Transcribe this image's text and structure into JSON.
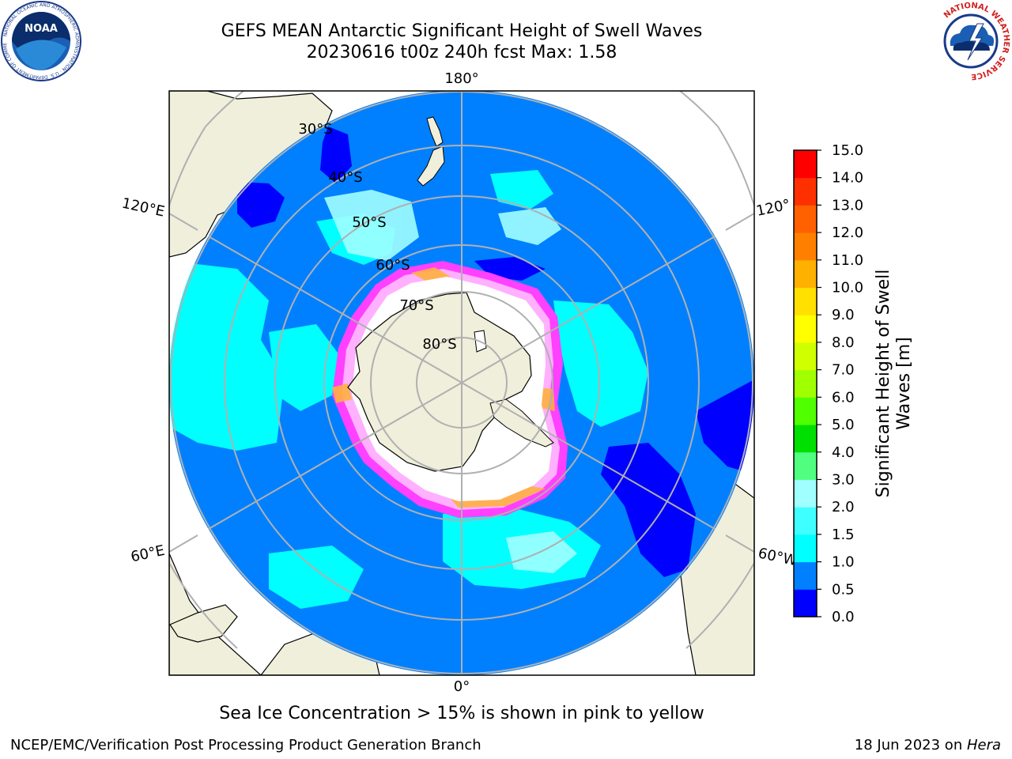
{
  "header": {
    "title_line1": "GEFS MEAN Antarctic Significant Height of Swell Waves",
    "title_line2": "20230616 t00z 240h fcst   Max: 1.58"
  },
  "logos": {
    "left": {
      "name": "noaa-logo",
      "text": "NOAA",
      "ring_text": "NATIONAL OCEANIC AND ATMOSPHERIC ADMINISTRATION · U.S. DEPARTMENT OF COMMERCE"
    },
    "right": {
      "name": "nws-logo",
      "ring_text": "NATIONAL WEATHER SERVICE"
    }
  },
  "map": {
    "projection": "south-polar-stereographic",
    "longitude_labels": {
      "top": "180°",
      "bottom": "0°",
      "upper_left": "120°E",
      "lower_left": "60°E",
      "upper_right": "120°",
      "lower_right": "60°W"
    },
    "latitude_labels": [
      "30°S",
      "40°S",
      "50°S",
      "60°S",
      "70°S",
      "80°S"
    ]
  },
  "colorbar": {
    "label_line1": "Significant Height of Swell",
    "label_line2": "Waves [m]",
    "ticks": [
      "0.0",
      "0.5",
      "1.0",
      "1.5",
      "2.0",
      "3.0",
      "4.0",
      "5.0",
      "6.0",
      "7.0",
      "8.0",
      "9.0",
      "10.0",
      "11.0",
      "12.0",
      "13.0",
      "14.0",
      "15.0"
    ],
    "colors": [
      "#0000ff",
      "#0080ff",
      "#00ffff",
      "#40ffff",
      "#a0ffff",
      "#50ff80",
      "#00e000",
      "#50ff00",
      "#a0ff00",
      "#d0ff00",
      "#ffff00",
      "#ffe000",
      "#ffb000",
      "#ff8000",
      "#ff6000",
      "#ff3000",
      "#ff0000"
    ]
  },
  "notes": {
    "ice": "Sea Ice Concentration > 15% is shown in pink to yellow"
  },
  "footer": {
    "left": "NCEP/EMC/Verification Post Processing Product Generation Branch",
    "right_prefix": "18 Jun 2023 on ",
    "right_machine": "Hera"
  }
}
